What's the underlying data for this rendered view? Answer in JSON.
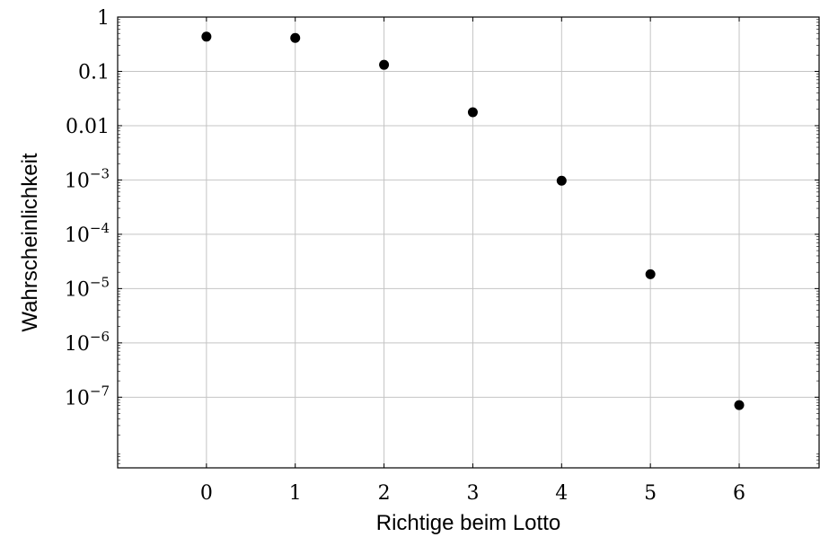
{
  "chart_data": {
    "type": "scatter",
    "xlabel": "Richtige beim Lotto",
    "ylabel": "Wahrscheinlichkeit",
    "x": [
      0,
      1,
      2,
      3,
      4,
      5,
      6
    ],
    "y": [
      0.436,
      0.413,
      0.132,
      0.0177,
      0.000969,
      1.84e-05,
      7.15e-08
    ],
    "xlim": [
      -1,
      6.9
    ],
    "ylim": [
      5e-09,
      1
    ],
    "yscale": "log",
    "x_ticks": [
      "0",
      "1",
      "2",
      "3",
      "4",
      "5",
      "6"
    ],
    "y_ticks": [
      {
        "value": 1,
        "label": "1",
        "exp": ""
      },
      {
        "value": 0.1,
        "label": "0.1",
        "exp": ""
      },
      {
        "value": 0.01,
        "label": "0.01",
        "exp": ""
      },
      {
        "value": 0.001,
        "label": "10",
        "exp": "−3"
      },
      {
        "value": 0.0001,
        "label": "10",
        "exp": "−4"
      },
      {
        "value": 1e-05,
        "label": "10",
        "exp": "−5"
      },
      {
        "value": 1e-06,
        "label": "10",
        "exp": "−6"
      },
      {
        "value": 1e-07,
        "label": "10",
        "exp": "−7"
      }
    ],
    "grid": true,
    "marker_color": "#000000"
  }
}
